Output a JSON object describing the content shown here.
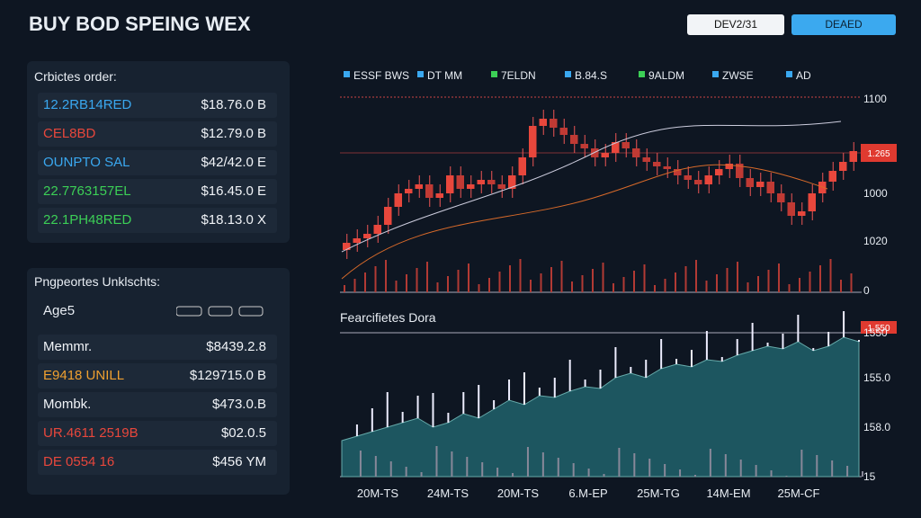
{
  "header": {
    "title": "BUY BOD SPEING WEX",
    "buttons": [
      "DEV2/31",
      "DEAED"
    ]
  },
  "orders_panel": {
    "title": "Crbictes order:",
    "rows": [
      [
        "12.2RB14RED",
        "$18.76.0 B"
      ],
      [
        "CEL8BD",
        "$12.79.0 B"
      ],
      [
        "OUNPTO SAL",
        "$42/42.0 E"
      ],
      [
        "22.7763157EL",
        "$16.45.0 E"
      ],
      [
        "22.1PH48RED",
        "$18.13.0 X"
      ]
    ]
  },
  "properties_panel": {
    "title": "Pngpeortes Unklschts:",
    "header": "Age5",
    "rows": [
      [
        "Memmr.",
        "$8439.2.8"
      ],
      [
        "E9418 UNILL",
        "$129715.0 B"
      ],
      [
        "Mombk.",
        "$473.0.B"
      ],
      [
        "UR.4611 2519B",
        "$02.0.5"
      ],
      [
        "DE 0554 16",
        "$456 YM"
      ]
    ]
  },
  "price_chart": {
    "legend": [
      "ESSF BWS",
      "DT MM",
      "7ELDN",
      "B.84.S",
      "9ALDM",
      "ZWSE",
      "AD"
    ],
    "y_labels": [
      "1100",
      "1000",
      "1020",
      "0"
    ],
    "price_tag": "1.265"
  },
  "depth_chart": {
    "title": "Fearcifietes Dora",
    "y_labels": [
      "1550",
      "155.0",
      "158.0",
      "15"
    ],
    "price_tag": "1.550",
    "x_labels": [
      "20M-TS",
      "24M-TS",
      "20M-TS",
      "6.M-EP",
      "25M-TG",
      "14M-EM",
      "25M-CF"
    ]
  }
}
